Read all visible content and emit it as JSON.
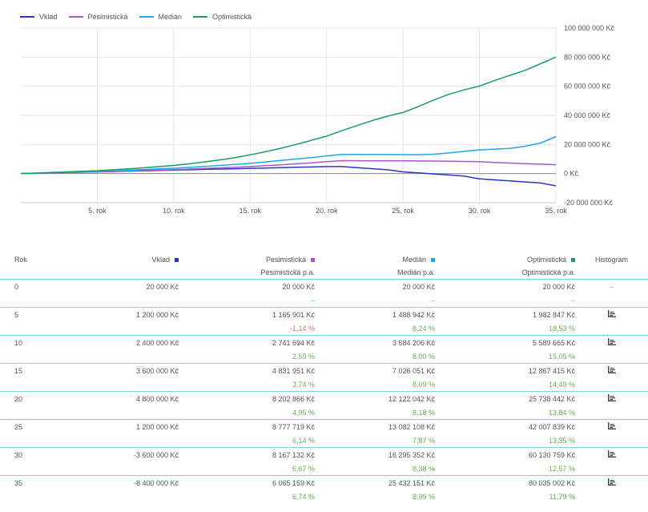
{
  "colors": {
    "vklad": "#2a36c9",
    "pesimisticka": "#a65ac8",
    "median": "#1fa8e8",
    "optimisticka": "#18a05a",
    "grid": "#e6e6e6",
    "separator": "#7fd3e3",
    "positive": "#6aaf4c",
    "negative": "#e06d6d"
  },
  "chart_data": {
    "type": "line",
    "x_tick_labels": [
      "5. rok",
      "10. rok",
      "15. rok",
      "20. rok",
      "25. rok",
      "30. rok",
      "35. rok"
    ],
    "x_ticks": [
      5,
      10,
      15,
      20,
      25,
      30,
      35
    ],
    "xlim": [
      0,
      35
    ],
    "ylim": [
      -20000000,
      100000000
    ],
    "y_ticks": [
      -20000000,
      0,
      20000000,
      40000000,
      60000000,
      80000000,
      100000000
    ],
    "y_tick_labels": [
      "-20 000 000 Kč",
      "0 Kč",
      "20 000 000 Kč",
      "40 000 000 Kč",
      "60 000 000 Kč",
      "80 000 000 Kč",
      "100 000 000 Kč"
    ],
    "grid": true,
    "legend_placement": "top-left",
    "x": [
      0,
      1,
      2,
      3,
      4,
      5,
      6,
      7,
      8,
      9,
      10,
      11,
      12,
      13,
      14,
      15,
      16,
      17,
      18,
      19,
      20,
      21,
      22,
      23,
      24,
      25,
      26,
      27,
      28,
      29,
      30,
      31,
      32,
      33,
      34,
      35
    ],
    "series": [
      {
        "name": "Vklad",
        "key": "vklad",
        "values": [
          20000,
          260000,
          500000,
          740000,
          980000,
          1200000,
          1440000,
          1680000,
          1920000,
          2160000,
          2400000,
          2640000,
          2880000,
          3120000,
          3360000,
          3600000,
          3840000,
          4080000,
          4320000,
          4560000,
          4800000,
          4800000,
          4080000,
          3360000,
          2640000,
          1200000,
          480000,
          -240000,
          -960000,
          -1680000,
          -3600000,
          -4320000,
          -5040000,
          -5760000,
          -6480000,
          -8400000
        ]
      },
      {
        "name": "Pesimistická",
        "key": "pesimisticka",
        "values": [
          20000,
          240000,
          470000,
          700000,
          930000,
          1165901,
          1480000,
          1800000,
          2110000,
          2420000,
          2741694,
          3140000,
          3530000,
          3930000,
          4350000,
          4831951,
          5420000,
          6040000,
          6700000,
          7420000,
          8202866,
          8900000,
          8850000,
          8800000,
          8780000,
          8777719,
          8700000,
          8620000,
          8500000,
          8350000,
          8167132,
          7700000,
          7250000,
          6850000,
          6450000,
          6065159
        ]
      },
      {
        "name": "Medián",
        "key": "median",
        "values": [
          20000,
          300000,
          590000,
          890000,
          1190000,
          1488942,
          1920000,
          2360000,
          2800000,
          3240000,
          3684206,
          4300000,
          4950000,
          5600000,
          6300000,
          7026051,
          8000000,
          9000000,
          10000000,
          11000000,
          12122042,
          13200000,
          13200000,
          13150000,
          13100000,
          13082108,
          13000000,
          13300000,
          14200000,
          15300000,
          16295352,
          16800000,
          17300000,
          18800000,
          21000000,
          25432151
        ]
      },
      {
        "name": "Optimistická",
        "key": "optimisticka",
        "values": [
          20000,
          390000,
          780000,
          1180000,
          1580000,
          1982847,
          2600000,
          3250000,
          3950000,
          4750000,
          5589665,
          6700000,
          8000000,
          9400000,
          11000000,
          12867415,
          15000000,
          17400000,
          20000000,
          22800000,
          25738442,
          29500000,
          33000000,
          36500000,
          39500000,
          42007839,
          46000000,
          50500000,
          54500000,
          57500000,
          60130759,
          64000000,
          67500000,
          71000000,
          75500000,
          80035002
        ]
      }
    ]
  },
  "legend": [
    {
      "label": "Vklad",
      "key": "vklad"
    },
    {
      "label": "Pesimistická",
      "key": "pesimisticka"
    },
    {
      "label": "Medián",
      "key": "median"
    },
    {
      "label": "Optimistická",
      "key": "optimisticka"
    }
  ],
  "table": {
    "headers": {
      "rok": "Rok",
      "vklad": "Vklad",
      "pesimisticka": "Pesimistická",
      "median": "Medián",
      "optimisticka": "Optimistická",
      "histogram": "Histogram",
      "pes_pa": "Pesimistická p.a.",
      "med_pa": "Medián p.a.",
      "opt_pa": "Optimistická p.a."
    },
    "rows": [
      {
        "rok": "0",
        "vklad": "20 000 Kč",
        "pes": "20 000 Kč",
        "med": "20 000 Kč",
        "opt": "20 000 Kč",
        "hist": "–",
        "pes_pa": "–",
        "med_pa": "–",
        "opt_pa": "–",
        "pes_neg": false,
        "has_hist": false
      },
      {
        "rok": "5",
        "vklad": "1 200 000 Kč",
        "pes": "1 165 901 Kč",
        "med": "1 488 942 Kč",
        "opt": "1 982 847 Kč",
        "hist": "",
        "pes_pa": "-1,14 %",
        "med_pa": "8,24 %",
        "opt_pa": "18,53 %",
        "pes_neg": true,
        "has_hist": true
      },
      {
        "rok": "10",
        "vklad": "2 400 000 Kč",
        "pes": "2 741 694 Kč",
        "med": "3 684 206 Kč",
        "opt": "5 589 665 Kč",
        "hist": "",
        "pes_pa": "2,59 %",
        "med_pa": "8,00 %",
        "opt_pa": "15,05 %",
        "pes_neg": false,
        "has_hist": true
      },
      {
        "rok": "15",
        "vklad": "3 600 000 Kč",
        "pes": "4 831 951 Kč",
        "med": "7 026 051 Kč",
        "opt": "12 867 415 Kč",
        "hist": "",
        "pes_pa": "3,74 %",
        "med_pa": "8,09 %",
        "opt_pa": "14,49 %",
        "pes_neg": false,
        "has_hist": true
      },
      {
        "rok": "20",
        "vklad": "4 800 000 Kč",
        "pes": "8 202 866 Kč",
        "med": "12 122 042 Kč",
        "opt": "25 738 442 Kč",
        "hist": "",
        "pes_pa": "4,95 %",
        "med_pa": "8,18 %",
        "opt_pa": "13,84 %",
        "pes_neg": false,
        "has_hist": true
      },
      {
        "rok": "25",
        "vklad": "1 200 000 Kč",
        "pes": "8 777 719 Kč",
        "med": "13 082 108 Kč",
        "opt": "42 007 839 Kč",
        "hist": "",
        "pes_pa": "6,14 %",
        "med_pa": "7,87 %",
        "opt_pa": "13,35 %",
        "pes_neg": false,
        "has_hist": true
      },
      {
        "rok": "30",
        "vklad": "-3 600 000 Kč",
        "pes": "8 167 132 Kč",
        "med": "16 295 352 Kč",
        "opt": "60 130 759 Kč",
        "hist": "",
        "pes_pa": "6,67 %",
        "med_pa": "8,38 %",
        "opt_pa": "12,57 %",
        "pes_neg": false,
        "has_hist": true
      },
      {
        "rok": "35",
        "vklad": "-8 400 000 Kč",
        "pes": "6 065 159 Kč",
        "med": "25 432 151 Kč",
        "opt": "80 035 002 Kč",
        "hist": "",
        "pes_pa": "6,74 %",
        "med_pa": "8,99 %",
        "opt_pa": "11,79 %",
        "pes_neg": false,
        "has_hist": true
      }
    ]
  }
}
